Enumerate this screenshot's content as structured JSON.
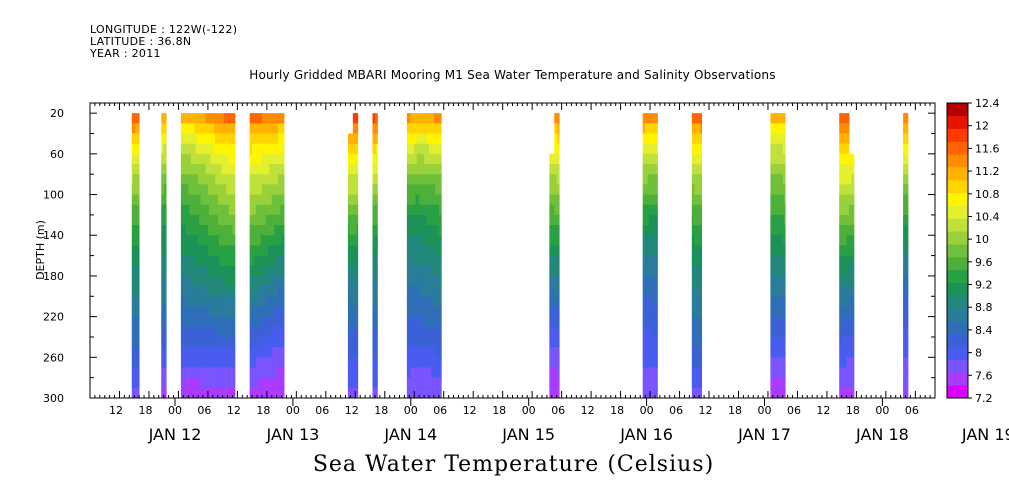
{
  "header": {
    "longitude": "LONGITUDE : 122W(-122)",
    "latitude": "LATITUDE : 36.8N",
    "year": "YEAR : 2011"
  },
  "colors": [
    "#d800ff",
    "#a93cff",
    "#7a55ff",
    "#4a5cf0",
    "#3a62d6",
    "#2f6fb8",
    "#2a7d9a",
    "#22887b",
    "#1a9258",
    "#2aa044",
    "#4db03a",
    "#6fc03a",
    "#98d13a",
    "#c0e03a",
    "#e4ef2e",
    "#fff500",
    "#ffd400",
    "#ffb200",
    "#ff8c00",
    "#ff6400",
    "#ff3a00",
    "#e61500",
    "#b50000"
  ],
  "chart_data": {
    "type": "heatmap",
    "title": "Hourly Gridded MBARI Mooring M1 Sea Water Temperature and Salinity Observations",
    "xlabel": "Sea Water Temperature (Celsius)",
    "ylabel": "DEPTH (m)",
    "xlim_hours": [
      0,
      172
    ],
    "x_start": "2011-01-11T12:00",
    "ylim": [
      300,
      10
    ],
    "yticks": [
      20,
      60,
      100,
      140,
      180,
      220,
      260,
      300
    ],
    "xtick_hours": [
      "12",
      "18",
      "00",
      "06",
      "12",
      "18",
      "00",
      "06",
      "12",
      "18",
      "00",
      "06",
      "12",
      "18",
      "00",
      "06",
      "12",
      "18",
      "00",
      "06",
      "12",
      "18",
      "00",
      "06",
      "12",
      "18",
      "00",
      "06"
    ],
    "day_labels": [
      "JAN 12",
      "JAN 13",
      "JAN 14",
      "JAN 15",
      "JAN 16",
      "JAN 17",
      "JAN 18",
      "JAN 19"
    ],
    "colorbar": {
      "min": 7.2,
      "max": 12.4,
      "step": 0.2,
      "labels": [
        "12.4",
        "12",
        "11.6",
        "11.2",
        "10.8",
        "10.4",
        "10",
        "9.6",
        "9.2",
        "8.8",
        "8.4",
        "8",
        "7.6",
        "7.2"
      ]
    },
    "depth_levels": [
      20,
      30,
      40,
      50,
      60,
      70,
      80,
      90,
      100,
      110,
      120,
      130,
      140,
      150,
      160,
      170,
      180,
      190,
      200,
      210,
      220,
      230,
      240,
      250,
      260,
      270,
      280,
      290,
      300
    ],
    "data_gaps": [
      {
        "x0": 8.5,
        "x1": 10.0,
        "top": 20
      },
      {
        "x0": 14.5,
        "x1": 15.5,
        "top": 20
      },
      {
        "x0": 18.5,
        "x1": 29.5,
        "top": 20
      },
      {
        "x0": 32.5,
        "x1": 39.5,
        "top": 20
      },
      {
        "x0": 52.5,
        "x1": 54.5,
        "top": 20,
        "partial": {
          "x0": 52.5,
          "x1": 53.5,
          "top": 40
        }
      },
      {
        "x0": 57.5,
        "x1": 58.5,
        "top": 20
      },
      {
        "x0": 64.5,
        "x1": 71.5,
        "top": 20
      },
      {
        "x0": 93.5,
        "x1": 95.5,
        "top": 20,
        "partial": {
          "x0": 93.5,
          "x1": 94.5,
          "top": 60
        }
      },
      {
        "x0": 112.5,
        "x1": 115.5,
        "top": 20
      },
      {
        "x0": 122.5,
        "x1": 124.5,
        "top": 20
      },
      {
        "x0": 138.5,
        "x1": 141.5,
        "top": 20
      },
      {
        "x0": 152.5,
        "x1": 155.5,
        "top": 20,
        "partial": {
          "x0": 154.5,
          "x1": 155.5,
          "top": 60
        }
      },
      {
        "x0": 165.5,
        "x1": 166.5,
        "top": 20
      }
    ]
  }
}
